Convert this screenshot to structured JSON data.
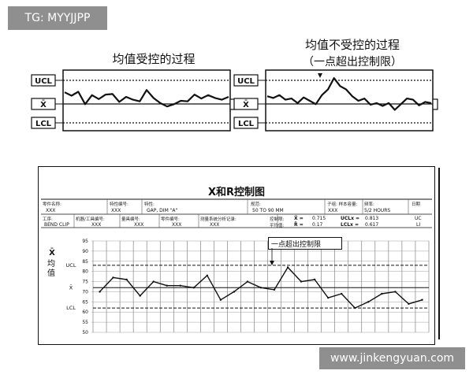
{
  "watermarks": {
    "top": "TG: MYYJJPP",
    "bottom": "www.jinkengyuan.com"
  },
  "chart_data": [
    {
      "type": "line",
      "title": "均值受控的过程",
      "control_labels": [
        "UCL",
        "X̄",
        "LCL"
      ],
      "series": [
        {
          "values": [
            65,
            59,
            66,
            44,
            60,
            53,
            61,
            62,
            48,
            57,
            52,
            49,
            69,
            55,
            46,
            40,
            44,
            50,
            49,
            61,
            54,
            60,
            55,
            52,
            57
          ]
        }
      ]
    },
    {
      "type": "line",
      "title": "均值不受控的过程",
      "subtitle": "（一点超出控制限）",
      "control_labels": [
        "UCL",
        "X̄",
        "LCL"
      ],
      "series": [
        {
          "values": [
            58,
            55,
            60,
            52,
            54,
            46,
            56,
            50,
            44,
            60,
            70,
            90,
            76,
            70,
            58,
            50,
            54,
            43,
            46,
            41,
            46,
            34,
            44,
            54,
            52,
            42,
            48,
            46
          ]
        }
      ]
    },
    {
      "type": "line",
      "title": "X和R控制图",
      "y_ticks": [
        "95",
        "90",
        "85",
        "80",
        "75",
        "70",
        "65",
        "60",
        "55",
        "50"
      ],
      "y_labels": [
        "UCL",
        "X̄",
        "LCL"
      ],
      "ylabel": "均值",
      "ylim": [
        50,
        95
      ],
      "annotation": "一点超出控制限",
      "series": [
        {
          "values": [
            70,
            77,
            76,
            68,
            75,
            73,
            73,
            72,
            78,
            66,
            70,
            75,
            72,
            71,
            82,
            75,
            76,
            67,
            69,
            62,
            65,
            69,
            70,
            64,
            66
          ]
        }
      ]
    }
  ],
  "form": {
    "fields_row1": [
      {
        "label": "零件名称:",
        "value": "XXX"
      },
      {
        "label": "特性编号:",
        "value": "XXX"
      },
      {
        "label": "特性:",
        "value": "GAP, DIM \"A\""
      },
      {
        "label": "规范:",
        "value": "50 TO 90 MM"
      },
      {
        "label": "子组: 样本容量:",
        "value": "XXX"
      },
      {
        "label": "频率:",
        "value": "5/2 HOURS"
      },
      {
        "label": "日期",
        "value": ""
      }
    ],
    "fields_row2": [
      {
        "label": "工序:",
        "value": "BEND CLIP"
      },
      {
        "label": "机器/工具编号:",
        "value": "XXX"
      },
      {
        "label": "量具编号:",
        "value": "XXX"
      },
      {
        "label": "零件编号:",
        "value": "XXX"
      },
      {
        "label": "测量系统分析记录:",
        "value": "XXX"
      }
    ],
    "stats": {
      "label1": "控制限:",
      "label2": "平均值:",
      "xbar_sym": "X̄ =",
      "xbar_val": "0.715",
      "rbar_sym": "R̄ =",
      "rbar_val": "0.17",
      "ucl_sym": "UCLx =",
      "ucl_val": "0.813",
      "lcl_sym": "LCLx =",
      "lcl_val": "0.617",
      "extra": "UC",
      "extra2": "LI"
    }
  }
}
